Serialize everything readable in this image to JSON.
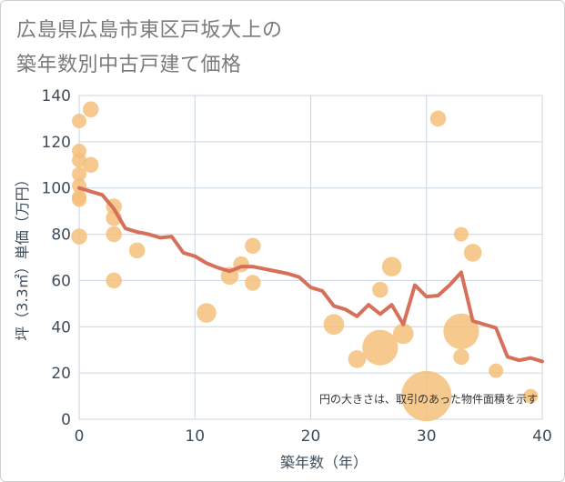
{
  "title_lines": [
    "広島県広島市東区戸坂大上の",
    "築年数別中古戸建て価格"
  ],
  "chart_data": {
    "type": "scatter",
    "title": "広島県広島市東区戸坂大上の築年数別中古戸建て価格",
    "xlabel": "築年数（年）",
    "ylabel": "坪（3.3㎡）単価（万円）",
    "xlim": [
      0,
      40
    ],
    "ylim": [
      0,
      140
    ],
    "xticks": [
      0,
      10,
      20,
      30,
      40
    ],
    "yticks": [
      0,
      20,
      40,
      60,
      80,
      100,
      120,
      140
    ],
    "grid": true,
    "annotation": "円の大きさは、取引のあった物件面積を示す",
    "colors": {
      "bubble": "#f4c07a",
      "line": "#d6705a",
      "grid": "#c9d6e2",
      "text": "#3d4d5c"
    },
    "bubbles": [
      {
        "x": 0,
        "y": 129,
        "size": 1
      },
      {
        "x": 0,
        "y": 116,
        "size": 1
      },
      {
        "x": 0,
        "y": 112,
        "size": 1
      },
      {
        "x": 0,
        "y": 106,
        "size": 1
      },
      {
        "x": 0,
        "y": 101,
        "size": 1
      },
      {
        "x": 0,
        "y": 96,
        "size": 1
      },
      {
        "x": 0,
        "y": 95,
        "size": 1
      },
      {
        "x": 0,
        "y": 79,
        "size": 1.2
      },
      {
        "x": 1,
        "y": 134,
        "size": 1.2
      },
      {
        "x": 1,
        "y": 110,
        "size": 1.2
      },
      {
        "x": 3,
        "y": 92,
        "size": 1.2
      },
      {
        "x": 3,
        "y": 87,
        "size": 1.2
      },
      {
        "x": 3,
        "y": 80,
        "size": 1.2
      },
      {
        "x": 3,
        "y": 60,
        "size": 1.2
      },
      {
        "x": 5,
        "y": 73,
        "size": 1.2
      },
      {
        "x": 11,
        "y": 46,
        "size": 1.8
      },
      {
        "x": 13,
        "y": 62,
        "size": 1.5
      },
      {
        "x": 14,
        "y": 67,
        "size": 1.2
      },
      {
        "x": 15,
        "y": 75,
        "size": 1.2
      },
      {
        "x": 15,
        "y": 59,
        "size": 1.2
      },
      {
        "x": 22,
        "y": 41,
        "size": 2
      },
      {
        "x": 24,
        "y": 26,
        "size": 1.5
      },
      {
        "x": 26,
        "y": 56,
        "size": 1.2
      },
      {
        "x": 26,
        "y": 31,
        "size": 6
      },
      {
        "x": 27,
        "y": 66,
        "size": 1.8
      },
      {
        "x": 28,
        "y": 37,
        "size": 2
      },
      {
        "x": 30,
        "y": 10,
        "size": 12
      },
      {
        "x": 31,
        "y": 130,
        "size": 1.2
      },
      {
        "x": 33,
        "y": 80,
        "size": 1
      },
      {
        "x": 33,
        "y": 38,
        "size": 6
      },
      {
        "x": 33,
        "y": 27,
        "size": 1.2
      },
      {
        "x": 34,
        "y": 72,
        "size": 1.5
      },
      {
        "x": 36,
        "y": 21,
        "size": 1
      },
      {
        "x": 39,
        "y": 10,
        "size": 1
      }
    ],
    "series": [
      {
        "x": [
          0,
          1,
          2,
          3,
          4,
          5,
          6,
          7,
          8,
          9,
          10,
          11,
          12,
          13,
          14,
          15,
          16,
          17,
          18,
          19,
          20,
          21,
          22,
          23,
          24,
          25,
          26,
          27,
          28,
          29,
          30,
          31,
          32,
          33,
          34,
          35,
          36,
          37,
          38,
          39,
          40
        ],
        "values": [
          100,
          98.5,
          97,
          91,
          82.5,
          81,
          80,
          78.5,
          79,
          72,
          70.5,
          67.5,
          65.5,
          64,
          66,
          66,
          65,
          64,
          63,
          61.5,
          57,
          55.5,
          49,
          47.5,
          44.5,
          49.5,
          45.5,
          49.5,
          41,
          58,
          53,
          53.5,
          58,
          63.5,
          42.5,
          41,
          39.5,
          27,
          25.5,
          26.5,
          25
        ]
      }
    ]
  }
}
